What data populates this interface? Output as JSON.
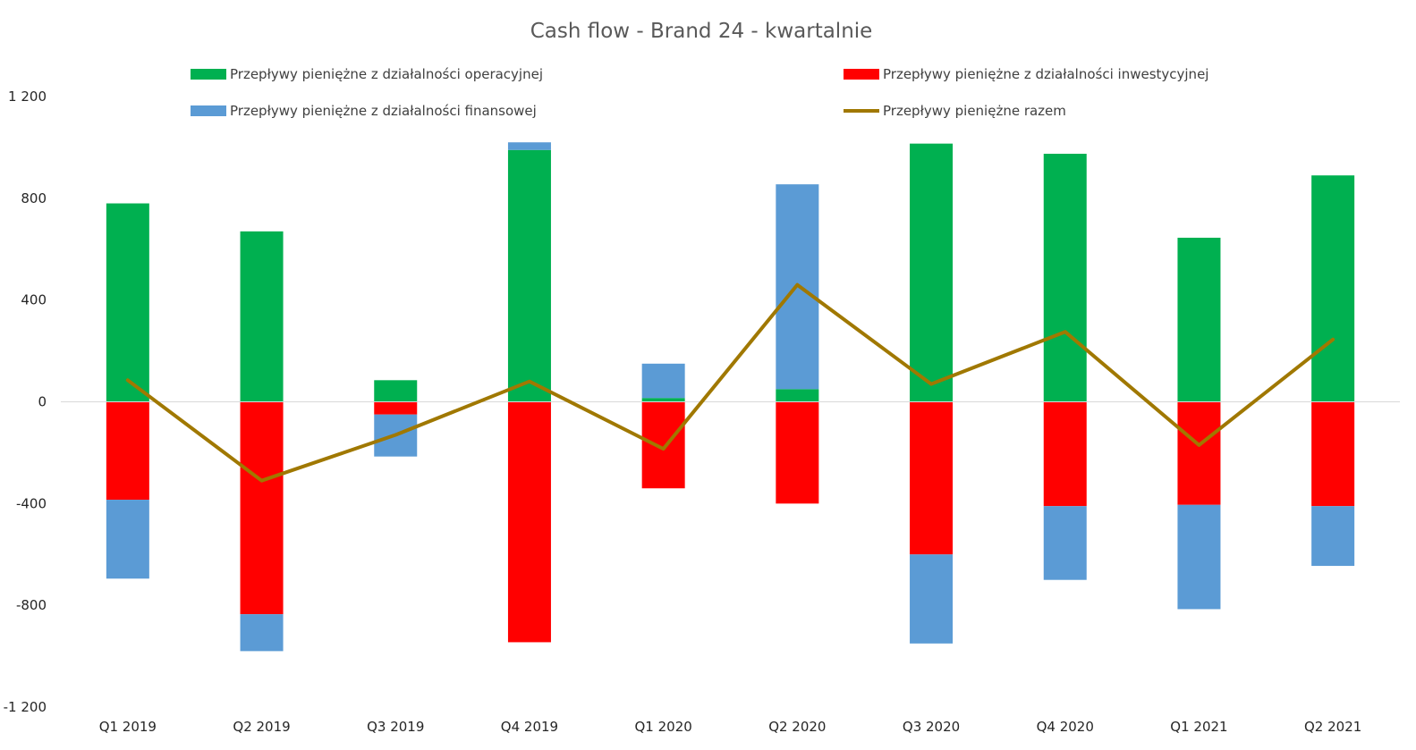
{
  "chart_data": {
    "type": "bar",
    "stacked": true,
    "title": "Cash flow - Brand 24 - kwartalnie",
    "categories": [
      "Q1 2019",
      "Q2 2019",
      "Q3 2019",
      "Q4 2019",
      "Q1 2020",
      "Q2 2020",
      "Q3 2020",
      "Q4 2020",
      "Q1 2021",
      "Q2 2021"
    ],
    "yticks": [
      -1200,
      -800,
      -400,
      0,
      400,
      800,
      1200
    ],
    "ytick_labels": [
      "-1 200",
      "-800",
      "-400",
      "0",
      "400",
      "800",
      "1 200"
    ],
    "ylim": [
      -1200,
      1200
    ],
    "grid": false,
    "legend_position": "top",
    "series": [
      {
        "name": "Przepływy pieniężne z działalności operacyjnej",
        "kind": "bar",
        "color": "#00b050",
        "values": [
          780,
          670,
          85,
          990,
          15,
          50,
          1015,
          975,
          645,
          890
        ]
      },
      {
        "name": "Przepływy pieniężne z działalności inwestycyjnej",
        "kind": "bar",
        "color": "#ff0000",
        "values": [
          -385,
          -835,
          -50,
          -945,
          -340,
          -400,
          -600,
          -410,
          -405,
          -410
        ]
      },
      {
        "name": "Przepływy pieniężne z działalności finansowej",
        "kind": "bar",
        "color": "#5b9bd5",
        "values": [
          -310,
          -145,
          -165,
          30,
          135,
          805,
          -350,
          -290,
          -410,
          -235
        ]
      },
      {
        "name": "Przepływy pieniężne razem",
        "kind": "line",
        "color": "#a07800",
        "values": [
          85,
          -310,
          -130,
          80,
          -185,
          460,
          70,
          275,
          -170,
          245
        ]
      }
    ]
  }
}
